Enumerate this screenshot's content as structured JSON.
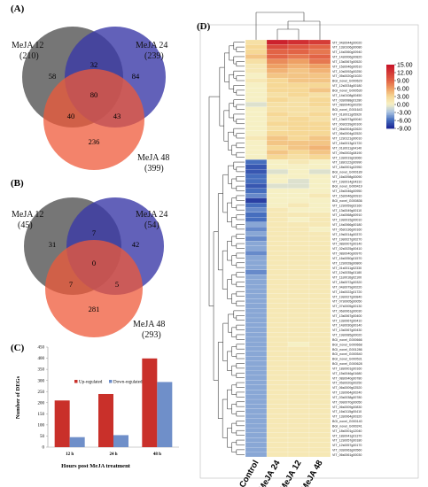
{
  "panels": {
    "a": "(A)",
    "b": "(B)",
    "c": "(C)",
    "d": "(D)"
  },
  "venn_a": {
    "set1": "MeJA 12",
    "set1_count": "(210)",
    "set2": "MeJA 24",
    "set2_count": "(239)",
    "set3": "MeJA 48",
    "set3_count": "(399)",
    "regions": {
      "only1": "58",
      "only2": "84",
      "only3": "236",
      "r12": "32",
      "r13": "40",
      "r23": "43",
      "r123": "80"
    }
  },
  "venn_b": {
    "set1": "MeJA 12",
    "set1_count": "(45)",
    "set2": "MeJA 24",
    "set2_count": "(54)",
    "set3": "MeJA 48",
    "set3_count": "(293)",
    "regions": {
      "only1": "31",
      "only2": "42",
      "only3": "281",
      "r12": "7",
      "r13": "7",
      "r23": "5",
      "r123": "0"
    }
  },
  "colors": {
    "set1": "#5e5e5e",
    "set2": "#3b3aa8",
    "set3": "#ef5a3a",
    "up": "#c9302a",
    "down": "#6f8fc9"
  },
  "chart_data": [
    {
      "type": "bar",
      "categories": [
        "12 h",
        "24 h",
        "48 h"
      ],
      "series": [
        {
          "name": "Up-regulated",
          "values": [
            210,
            239,
            399
          ]
        },
        {
          "name": "Down-regulated",
          "values": [
            45,
            54,
            293
          ]
        }
      ],
      "xlabel": "Hours post MeJA treatment",
      "ylabel": "Number of DEGs",
      "ylim": [
        0,
        450
      ],
      "yticks": [
        "0",
        "50",
        "100",
        "150",
        "200",
        "250",
        "300",
        "350",
        "400",
        "450"
      ],
      "legend": "top-center",
      "grid": false
    },
    {
      "type": "heatmap",
      "columns": [
        "Control",
        "MeJA 24",
        "MeJA 12",
        "MeJA 48"
      ],
      "legend_ticks": [
        "15.00",
        "12.00",
        "9.00",
        "6.00",
        "3.00",
        "0.00",
        "-3.00",
        "-6.00",
        "-9.00"
      ],
      "legend_range": [
        -9,
        15
      ],
      "rows": [
        {
          "gene": "VIT_04s0044g00020",
          "values": [
            2,
            14,
            13,
            12
          ]
        },
        {
          "gene": "VIT_13s0106g00080",
          "values": [
            3,
            11,
            10,
            9
          ]
        },
        {
          "gene": "VIT_14s0060g00940",
          "values": [
            3,
            9,
            9,
            8
          ]
        },
        {
          "gene": "VIT_14s0006g00820",
          "values": [
            4,
            9,
            8,
            9
          ]
        },
        {
          "gene": "VIT_13s0067g00520",
          "values": [
            2,
            7,
            6,
            8
          ]
        },
        {
          "gene": "VIT_15s0046g00510",
          "values": [
            1,
            6,
            5,
            6
          ]
        },
        {
          "gene": "VIT_10s0092g00250",
          "values": [
            1,
            5,
            4,
            5
          ]
        },
        {
          "gene": "VIT_05s0020g01020",
          "values": [
            0,
            4,
            4,
            4
          ]
        },
        {
          "gene": "BGI_novel_G000629",
          "values": [
            1,
            3,
            4,
            4
          ]
        },
        {
          "gene": "VIT_12s0034g00180",
          "values": [
            0,
            3,
            3,
            3
          ]
        },
        {
          "gene": "BGI_novel_G000530",
          "values": [
            0,
            3,
            3,
            4
          ]
        },
        {
          "gene": "VIT_14s0108g00450",
          "values": [
            0,
            2,
            3,
            2
          ]
        },
        {
          "gene": "VIT_03s0088g01280",
          "values": [
            0,
            3,
            2,
            3
          ]
        },
        {
          "gene": "VIT_08s0040g00250",
          "values": [
            -1,
            2,
            2,
            3
          ]
        },
        {
          "gene": "BGI_novel_G001643",
          "values": [
            0,
            2,
            2,
            2
          ]
        },
        {
          "gene": "VIT_01s0011g05920",
          "values": [
            0,
            3,
            2,
            3
          ]
        },
        {
          "gene": "VIT_13s0073g00040",
          "values": [
            0,
            2,
            3,
            2
          ]
        },
        {
          "gene": "VIT_00s0239g00100",
          "values": [
            0,
            3,
            3,
            3
          ]
        },
        {
          "gene": "VIT_06s0004g02620",
          "values": [
            0,
            2,
            3,
            3
          ]
        },
        {
          "gene": "VIT_06s0004g02520",
          "values": [
            0,
            3,
            3,
            3
          ]
        },
        {
          "gene": "VIT_12s0121g00010",
          "values": [
            1,
            4,
            3,
            4
          ]
        },
        {
          "gene": "VIT_16s0013g01720",
          "values": [
            0,
            4,
            4,
            4
          ]
        },
        {
          "gene": "VIT_01s0011g04140",
          "values": [
            0,
            3,
            4,
            5
          ]
        },
        {
          "gene": "VIT_09s0002g08190",
          "values": [
            0,
            4,
            3,
            4
          ]
        },
        {
          "gene": "VIT_13s0019g03060",
          "values": [
            0,
            3,
            2,
            3
          ]
        },
        {
          "gene": "VIT_18s0122g00990",
          "values": [
            -6,
            0,
            1,
            0
          ]
        },
        {
          "gene": "VIT_18s0001g02950",
          "values": [
            -7,
            0,
            0,
            0
          ]
        },
        {
          "gene": "BGI_novel_G000189",
          "values": [
            -7,
            -1,
            0,
            -1
          ]
        },
        {
          "gene": "VIT_16s0098g00090",
          "values": [
            -6,
            0,
            0,
            0
          ]
        },
        {
          "gene": "VIT_19s0014g04310",
          "values": [
            -6,
            0,
            -1,
            0
          ]
        },
        {
          "gene": "BGI_novel_G000419",
          "values": [
            -7,
            -1,
            -1,
            0
          ]
        },
        {
          "gene": "VIT_15s0046g00950",
          "values": [
            -6,
            0,
            0,
            0
          ]
        },
        {
          "gene": "VIT_15s0046g00910",
          "values": [
            -5,
            0,
            0,
            1
          ]
        },
        {
          "gene": "BGI_novel_G000836",
          "values": [
            -8,
            0,
            0,
            0
          ]
        },
        {
          "gene": "VIT_12s0059g02160",
          "values": [
            -6,
            0,
            1,
            0
          ]
        },
        {
          "gene": "VIT_13s0049g00110",
          "values": [
            -5,
            1,
            0,
            0
          ]
        },
        {
          "gene": "VIT_14s0068g00910",
          "values": [
            -6,
            1,
            1,
            1
          ]
        },
        {
          "gene": "VIT_19s0015g00010",
          "values": [
            -6,
            1,
            0,
            1
          ]
        },
        {
          "gene": "VIT_14s0066g00180",
          "values": [
            -4,
            1,
            1,
            1
          ]
        },
        {
          "gene": "VIT_05s0136g00160",
          "values": [
            -5,
            1,
            1,
            0
          ]
        },
        {
          "gene": "VIT_19s0014g00370",
          "values": [
            -4,
            1,
            1,
            1
          ]
        },
        {
          "gene": "VIT_19s0027g00270",
          "values": [
            -5,
            1,
            1,
            1
          ]
        },
        {
          "gene": "VIT_08s0007g00140",
          "values": [
            -4,
            1,
            1,
            1
          ]
        },
        {
          "gene": "VIT_02s0025g00410",
          "values": [
            -4,
            1,
            1,
            1
          ]
        },
        {
          "gene": "VIT_08s0040g00970",
          "values": [
            -5,
            1,
            1,
            1
          ]
        },
        {
          "gene": "VIT_16s0050g01570",
          "values": [
            -4,
            1,
            1,
            1
          ]
        },
        {
          "gene": "VIT_12s0028g00800",
          "values": [
            -4,
            1,
            1,
            1
          ]
        },
        {
          "gene": "VIT_01s0011g02330",
          "values": [
            -4,
            1,
            1,
            1
          ]
        },
        {
          "gene": "VIT_12s0035g01180",
          "values": [
            -5,
            1,
            1,
            1
          ]
        },
        {
          "gene": "VIT_11s0016g02100",
          "values": [
            -4,
            1,
            1,
            1
          ]
        },
        {
          "gene": "VIT_18s0072g00320",
          "values": [
            -4,
            1,
            1,
            1
          ]
        },
        {
          "gene": "VIT_04s0079g00220",
          "values": [
            -4,
            1,
            1,
            1
          ]
        },
        {
          "gene": "VIT_16s0022g01720",
          "values": [
            -4,
            1,
            1,
            1
          ]
        },
        {
          "gene": "VIT_19s0027g00840",
          "values": [
            -4,
            1,
            1,
            1
          ]
        },
        {
          "gene": "VIT_07s0005g00050",
          "values": [
            -4,
            1,
            1,
            1
          ]
        },
        {
          "gene": "VIT_07s0005g00130",
          "values": [
            -4,
            1,
            1,
            1
          ]
        },
        {
          "gene": "VIT_06s0061g00030",
          "values": [
            -4,
            1,
            1,
            1
          ]
        },
        {
          "gene": "VIT_13s0067g00400",
          "values": [
            -4,
            1,
            1,
            1
          ]
        },
        {
          "gene": "VIT_13s0067g00410",
          "values": [
            -4,
            1,
            1,
            1
          ]
        },
        {
          "gene": "VIT_14s0030g00140",
          "values": [
            -4,
            1,
            1,
            1
          ]
        },
        {
          "gene": "VIT_13s0067g00430",
          "values": [
            -4,
            1,
            1,
            1
          ]
        },
        {
          "gene": "VIT_19s0085g00020",
          "values": [
            -4,
            1,
            1,
            1
          ]
        },
        {
          "gene": "BGI_novel_G000666",
          "values": [
            -4,
            1,
            1,
            1
          ]
        },
        {
          "gene": "BGI_novel_G000668",
          "values": [
            -4,
            1,
            0,
            1
          ]
        },
        {
          "gene": "BGI_novel_G001286",
          "values": [
            -4,
            1,
            1,
            1
          ]
        },
        {
          "gene": "BGI_novel_G000540",
          "values": [
            -4,
            1,
            1,
            1
          ]
        },
        {
          "gene": "BGI_novel_G000531",
          "values": [
            -4,
            1,
            1,
            1
          ]
        },
        {
          "gene": "BGI_novel_G000628",
          "values": [
            -4,
            1,
            1,
            1
          ]
        },
        {
          "gene": "VIT_18s0001g00160",
          "values": [
            -4,
            1,
            1,
            1
          ]
        },
        {
          "gene": "VIT_15s0046g01680",
          "values": [
            -4,
            1,
            1,
            1
          ]
        },
        {
          "gene": "VIT_08s0040g00780",
          "values": [
            -4,
            1,
            1,
            1
          ]
        },
        {
          "gene": "VIT_05s0020g00250",
          "values": [
            -4,
            1,
            1,
            1
          ]
        },
        {
          "gene": "VIT_06s0009g02520",
          "values": [
            -4,
            1,
            1,
            1
          ]
        },
        {
          "gene": "VIT_13s0064g00240",
          "values": [
            -4,
            1,
            1,
            1
          ]
        },
        {
          "gene": "VIT_03s0038g00780",
          "values": [
            -4,
            1,
            1,
            1
          ]
        },
        {
          "gene": "VIT_09s0070g00050",
          "values": [
            -4,
            1,
            1,
            1
          ]
        },
        {
          "gene": "VIT_06s0009g00830",
          "values": [
            -4,
            1,
            1,
            1
          ]
        },
        {
          "gene": "VIT_16s0115g00410",
          "values": [
            -4,
            1,
            1,
            1
          ]
        },
        {
          "gene": "VIT_13s0064g00320",
          "values": [
            -4,
            1,
            1,
            1
          ]
        },
        {
          "gene": "BGI_novel_G000140",
          "values": [
            -4,
            1,
            1,
            1
          ]
        },
        {
          "gene": "BGI_novel_G000241",
          "values": [
            -4,
            1,
            1,
            1
          ]
        },
        {
          "gene": "VIT_18s0001g12040",
          "values": [
            -4,
            1,
            1,
            1
          ]
        },
        {
          "gene": "VIT_18s0041g01370",
          "values": [
            -4,
            1,
            1,
            1
          ]
        },
        {
          "gene": "VIT_12s0057g00180",
          "values": [
            -4,
            1,
            1,
            1
          ]
        },
        {
          "gene": "VIT_12s0057g00170",
          "values": [
            -4,
            1,
            1,
            1
          ]
        },
        {
          "gene": "VIT_03s0063g00560",
          "values": [
            -4,
            1,
            1,
            1
          ]
        },
        {
          "gene": "VIT_06s0061g00030",
          "values": [
            -4,
            1,
            1,
            1
          ]
        }
      ]
    }
  ]
}
